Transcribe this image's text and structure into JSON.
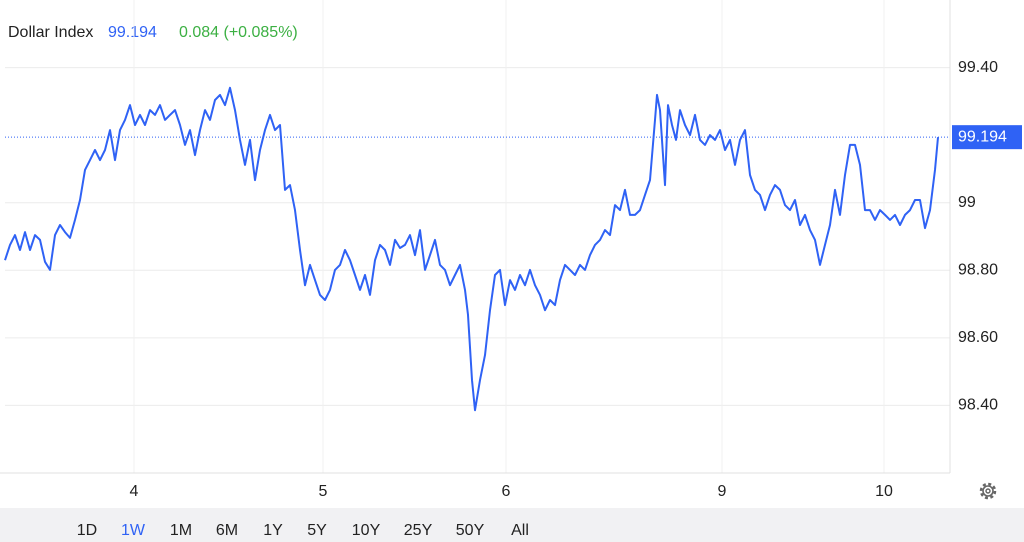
{
  "chart_data": {
    "type": "line",
    "change": "0.084 (+0.085%)",
    "last_value": 99.194,
    "series": [
      {
        "name": "Dollar Index",
        "color": "#2f62f5",
        "x": [
          0.05,
          0.1,
          0.15,
          0.2,
          0.25,
          0.3,
          0.35,
          0.4,
          0.45,
          0.5,
          0.55,
          0.6,
          0.65,
          0.7,
          0.75,
          0.8,
          0.85,
          0.9,
          0.95,
          1.0,
          1.05,
          1.1,
          1.15,
          1.2,
          1.25,
          1.3,
          1.35,
          1.4,
          1.45,
          1.5,
          1.55,
          1.6,
          1.65,
          1.7,
          1.75,
          1.8,
          1.85,
          1.9,
          1.95,
          2.0,
          2.05,
          2.1,
          2.15,
          2.2,
          2.25,
          2.3,
          2.35,
          2.4,
          2.45,
          2.5,
          2.55,
          2.6,
          2.65,
          2.7,
          2.75,
          2.8,
          2.85,
          2.9,
          2.95,
          3.0,
          3.05,
          3.1,
          3.15,
          3.2,
          3.25,
          3.3,
          3.35,
          3.4,
          3.45,
          3.5,
          3.55,
          3.6,
          3.65,
          3.7,
          3.75,
          3.8,
          3.85,
          3.9,
          3.95,
          4.0,
          4.05,
          4.1,
          4.15,
          4.2,
          4.25,
          4.3,
          4.35,
          4.4,
          4.45,
          4.5,
          4.55,
          4.6,
          4.65,
          4.68,
          4.72,
          4.75,
          4.8,
          4.85,
          4.9,
          4.95,
          5.0,
          5.05,
          5.1,
          5.15,
          5.2,
          5.25,
          5.3,
          5.35,
          5.4,
          5.45,
          5.5,
          5.55,
          5.6,
          5.65,
          5.7,
          5.75,
          5.8,
          5.85,
          5.9,
          5.95,
          6.0,
          6.05,
          6.1,
          6.15,
          6.2,
          6.25,
          6.3,
          6.35,
          6.4,
          6.45,
          6.5,
          6.55,
          6.57,
          6.6,
          6.65,
          6.68,
          6.72,
          6.76,
          6.8,
          6.85,
          6.9,
          6.95,
          7.0,
          7.05,
          7.1,
          7.15,
          7.2,
          7.25,
          7.3,
          7.35,
          7.4,
          7.45,
          7.5,
          7.55,
          7.6,
          7.65,
          7.7,
          7.75,
          7.8,
          7.85,
          7.9,
          7.95,
          8.0,
          8.05,
          8.1,
          8.15,
          8.2,
          8.25,
          8.3,
          8.35,
          8.4,
          8.45,
          8.5,
          8.55,
          8.6,
          8.65,
          8.7,
          8.75,
          8.8,
          8.85,
          8.9,
          8.95,
          9.0,
          9.05,
          9.1,
          9.15,
          9.2,
          9.25,
          9.3,
          9.35,
          9.38
        ],
        "values": [
          98.83,
          98.875,
          98.904,
          98.86,
          98.913,
          98.86,
          98.904,
          98.89,
          98.825,
          98.801,
          98.904,
          98.934,
          98.913,
          98.896,
          98.949,
          99.008,
          99.097,
          99.126,
          99.156,
          99.126,
          99.156,
          99.215,
          99.126,
          99.215,
          99.245,
          99.289,
          99.23,
          99.26,
          99.23,
          99.274,
          99.26,
          99.289,
          99.245,
          99.26,
          99.274,
          99.23,
          99.171,
          99.215,
          99.141,
          99.215,
          99.274,
          99.245,
          99.304,
          99.319,
          99.289,
          99.34,
          99.274,
          99.186,
          99.112,
          99.186,
          99.067,
          99.156,
          99.215,
          99.26,
          99.215,
          99.23,
          99.038,
          99.052,
          98.978,
          98.86,
          98.756,
          98.816,
          98.771,
          98.727,
          98.712,
          98.742,
          98.801,
          98.816,
          98.86,
          98.83,
          98.786,
          98.742,
          98.786,
          98.727,
          98.83,
          98.875,
          98.86,
          98.816,
          98.89,
          98.866,
          98.875,
          98.904,
          98.845,
          98.919,
          98.801,
          98.845,
          98.89,
          98.816,
          98.801,
          98.756,
          98.786,
          98.816,
          98.742,
          98.668,
          98.475,
          98.386,
          98.475,
          98.549,
          98.682,
          98.786,
          98.801,
          98.697,
          98.771,
          98.742,
          98.786,
          98.756,
          98.801,
          98.756,
          98.727,
          98.682,
          98.712,
          98.697,
          98.771,
          98.816,
          98.801,
          98.786,
          98.816,
          98.801,
          98.845,
          98.875,
          98.89,
          98.919,
          98.904,
          98.993,
          98.978,
          99.038,
          98.964,
          98.964,
          98.978,
          99.023,
          99.067,
          99.245,
          99.319,
          99.274,
          99.052,
          99.289,
          99.23,
          99.186,
          99.274,
          99.23,
          99.2,
          99.26,
          99.186,
          99.171,
          99.2,
          99.186,
          99.215,
          99.156,
          99.186,
          99.112,
          99.186,
          99.215,
          99.082,
          99.038,
          99.023,
          98.978,
          99.023,
          99.052,
          99.038,
          98.993,
          98.978,
          99.008,
          98.934,
          98.964,
          98.919,
          98.89,
          98.816,
          98.875,
          98.934,
          99.038,
          98.964,
          99.082,
          99.171,
          99.171,
          99.112,
          98.978,
          98.978,
          98.949,
          98.978,
          98.964,
          98.949,
          98.964,
          98.934,
          98.964,
          98.978,
          99.008,
          99.008,
          98.925,
          98.978,
          99.097,
          99.194
        ]
      }
    ],
    "xlim": [
      0.05,
      9.5
    ],
    "xticks": [
      {
        "value": 1.34,
        "label": "4"
      },
      {
        "value": 3.23,
        "label": "5"
      },
      {
        "value": 5.06,
        "label": "6"
      },
      {
        "value": 7.22,
        "label": "9"
      },
      {
        "value": 8.84,
        "label": "10"
      }
    ],
    "ylim": [
      98.2,
      99.6
    ],
    "yticks": [
      {
        "value": 98.4,
        "label": "98.40"
      },
      {
        "value": 98.6,
        "label": "98.60"
      },
      {
        "value": 98.8,
        "label": "98.80"
      },
      99,
      {
        "value": 99.4,
        "label": "99.40"
      }
    ],
    "grid": true
  },
  "range_buttons": [
    "1D",
    "1W",
    "1M",
    "6M",
    "1Y",
    "5Y",
    "10Y",
    "25Y",
    "50Y",
    "All"
  ],
  "active_range": 1
}
